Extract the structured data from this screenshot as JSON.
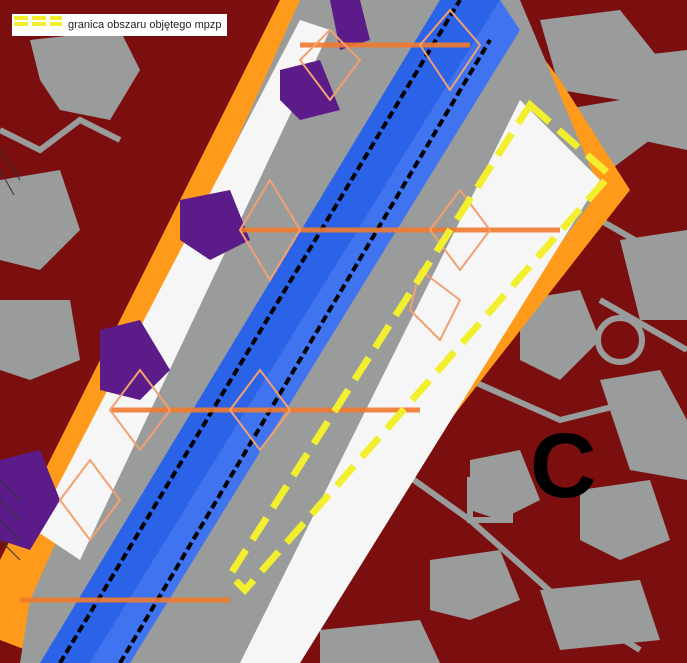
{
  "legend": {
    "label": "granica obszaru objętego mpzp",
    "swatch_color": "#f2ef2e"
  },
  "zone_label": "C",
  "colors": {
    "background_zone": "#7b0f0f",
    "buildings": "#9a9c9b",
    "road_border": "#ff9a1a",
    "road_surface": "#2b63e8",
    "rail_line": "#000000",
    "sidewalk": "#f6f6f6",
    "parking_purple": "#5b1c8a",
    "boundary_dashed": "#f2ef2e",
    "network_lines": "#f07a2e"
  }
}
